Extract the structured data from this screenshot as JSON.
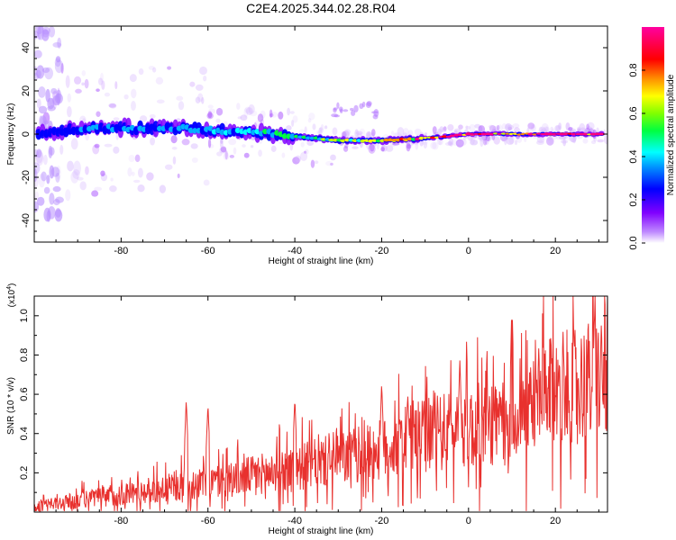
{
  "figure_title": "C2E4.2025.344.02.28.R04",
  "chart_data": [
    {
      "type": "heatmap",
      "title": "C2E4.2025.344.02.28.R04",
      "xlabel": "Height of straight line (km)",
      "ylabel": "Frequency (Hz)",
      "xlim": [
        -100,
        32
      ],
      "ylim": [
        -50,
        50
      ],
      "x_ticks": [
        -80,
        -60,
        -40,
        -20,
        0,
        20
      ],
      "y_ticks": [
        -40,
        -20,
        0,
        20,
        40
      ],
      "x_tick_labels": [
        "-80",
        "-60",
        "-40",
        "-20",
        "0",
        "20"
      ],
      "y_tick_labels": [
        "-40",
        "-20",
        "0",
        "20",
        "40"
      ],
      "colorbar": {
        "label": "Normalized spectral amplitude",
        "range": [
          0,
          1
        ],
        "ticks": [
          0.0,
          0.2,
          0.4,
          0.6,
          0.8
        ],
        "tick_labels": [
          "0.0",
          "0.2",
          "0.4",
          "0.6",
          "0.8"
        ],
        "colormap": [
          "#ffffff",
          "#a000ff",
          "#0000ff",
          "#00ffff",
          "#00ff00",
          "#ffff00",
          "#ff8000",
          "#ff0000",
          "#ff00a0"
        ]
      },
      "ridge": {
        "x": [
          -100,
          -90,
          -80,
          -70,
          -60,
          -50,
          -40,
          -30,
          -20,
          -10,
          0,
          10,
          20,
          31
        ],
        "freq": [
          0,
          2,
          3,
          3,
          2,
          1,
          -1,
          -3,
          -3,
          -2,
          0,
          0,
          0,
          0
        ],
        "amplitude": [
          0.15,
          0.25,
          0.3,
          0.28,
          0.3,
          0.35,
          0.4,
          0.5,
          0.6,
          0.75,
          0.85,
          0.8,
          0.85,
          0.8
        ]
      }
    },
    {
      "type": "line",
      "title": "",
      "xlabel": "Height of straight line (km)",
      "ylabel": "SNR (10 * v/v)",
      "y_multiplier_label": "(x10",
      "y_multiplier_exp": "4",
      "y_multiplier_close": ")",
      "xlim": [
        -100,
        32
      ],
      "ylim": [
        0,
        1.1
      ],
      "x_ticks": [
        -80,
        -60,
        -40,
        -20,
        0,
        20
      ],
      "y_ticks": [
        0.2,
        0.4,
        0.6,
        0.8,
        1.0
      ],
      "x_tick_labels": [
        "-80",
        "-60",
        "-40",
        "-20",
        "0",
        "20"
      ],
      "y_tick_labels": [
        "0.2",
        "0.4",
        "0.6",
        "0.8",
        "1.0"
      ],
      "series": [
        {
          "name": "SNR",
          "color": "#e8312e",
          "trend_x": [
            -100,
            -90,
            -80,
            -70,
            -60,
            -50,
            -40,
            -30,
            -20,
            -10,
            0,
            10,
            15,
            20,
            31
          ],
          "trend_y": [
            0.03,
            0.08,
            0.12,
            0.16,
            0.2,
            0.25,
            0.3,
            0.36,
            0.42,
            0.52,
            0.58,
            0.6,
            0.75,
            0.82,
            0.92
          ],
          "peaks_x": [
            -65,
            -60,
            -40,
            -20,
            -14,
            -2,
            10,
            29
          ],
          "peaks_y": [
            0.57,
            0.55,
            0.58,
            0.66,
            0.6,
            0.78,
            1.1,
            1.03
          ]
        }
      ]
    }
  ]
}
